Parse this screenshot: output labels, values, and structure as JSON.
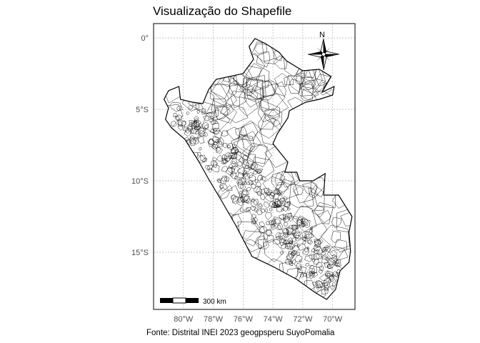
{
  "title": "Visualização do Shapefile",
  "caption": "Fonte: Distrital INEI 2023 geogpsperu SuyoPomalia",
  "map": {
    "lon_range": [
      -82.0,
      -68.5
    ],
    "lat_range": [
      -19.0,
      1.0
    ],
    "x_ticks": [
      {
        "lon": -80,
        "label": "80°W"
      },
      {
        "lon": -78,
        "label": "78°W"
      },
      {
        "lon": -76,
        "label": "76°W"
      },
      {
        "lon": -74,
        "label": "74°W"
      },
      {
        "lon": -72,
        "label": "72°W"
      },
      {
        "lon": -70,
        "label": "70°W"
      }
    ],
    "y_ticks": [
      {
        "lat": 0,
        "label": "0°"
      },
      {
        "lat": -5,
        "label": "5°S"
      },
      {
        "lat": -10,
        "label": "10°S"
      },
      {
        "lat": -15,
        "label": "15°S"
      }
    ],
    "gridlines": true,
    "scale_bar_label": "300 km",
    "north_arrow_label": "N",
    "outline": [
      [
        -81.3,
        -4.3
      ],
      [
        -81.0,
        -4.9
      ],
      [
        -81.2,
        -5.7
      ],
      [
        -80.8,
        -6.3
      ],
      [
        -79.9,
        -7.1
      ],
      [
        -79.0,
        -8.6
      ],
      [
        -78.3,
        -9.9
      ],
      [
        -77.5,
        -11.3
      ],
      [
        -76.5,
        -13.1
      ],
      [
        -75.4,
        -15.3
      ],
      [
        -74.0,
        -16.0
      ],
      [
        -72.4,
        -16.9
      ],
      [
        -71.2,
        -17.8
      ],
      [
        -70.4,
        -18.3
      ],
      [
        -69.8,
        -17.6
      ],
      [
        -69.5,
        -16.3
      ],
      [
        -68.9,
        -15.7
      ],
      [
        -68.8,
        -14.9
      ],
      [
        -68.9,
        -13.6
      ],
      [
        -68.7,
        -12.5
      ],
      [
        -69.6,
        -11.0
      ],
      [
        -70.6,
        -11.0
      ],
      [
        -70.5,
        -9.5
      ],
      [
        -71.3,
        -10.0
      ],
      [
        -72.2,
        -10.0
      ],
      [
        -72.4,
        -9.4
      ],
      [
        -73.2,
        -9.4
      ],
      [
        -73.0,
        -8.7
      ],
      [
        -74.0,
        -7.4
      ],
      [
        -73.7,
        -6.7
      ],
      [
        -73.0,
        -5.6
      ],
      [
        -72.9,
        -5.1
      ],
      [
        -71.8,
        -4.5
      ],
      [
        -70.9,
        -4.3
      ],
      [
        -70.0,
        -4.0
      ],
      [
        -69.9,
        -3.4
      ],
      [
        -70.7,
        -3.8
      ],
      [
        -70.1,
        -2.7
      ],
      [
        -70.9,
        -2.2
      ],
      [
        -72.0,
        -2.3
      ],
      [
        -73.1,
        -1.6
      ],
      [
        -73.6,
        -1.0
      ],
      [
        -74.5,
        -0.4
      ],
      [
        -75.2,
        -0.05
      ],
      [
        -75.6,
        -0.6
      ],
      [
        -75.3,
        -1.5
      ],
      [
        -76.0,
        -2.5
      ],
      [
        -77.8,
        -2.9
      ],
      [
        -78.3,
        -3.6
      ],
      [
        -78.7,
        -4.6
      ],
      [
        -79.4,
        -4.5
      ],
      [
        -80.2,
        -4.3
      ],
      [
        -80.3,
        -3.4
      ],
      [
        -81.0,
        -3.7
      ]
    ]
  }
}
